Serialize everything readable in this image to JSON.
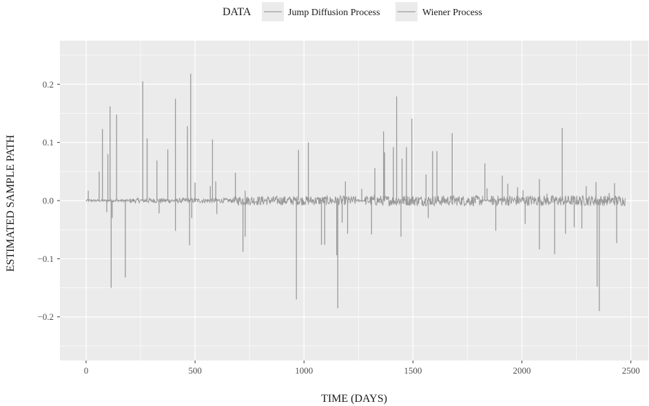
{
  "chart_data": {
    "type": "line",
    "title": "",
    "xlabel": "TIME (DAYS)",
    "ylabel": "ESTIMATED SAMPLE PATH",
    "xlim": [
      -120,
      2580
    ],
    "ylim": [
      -0.275,
      0.275
    ],
    "x_ticks": [
      0,
      500,
      1000,
      1500,
      2000,
      2500
    ],
    "x_tick_labels": [
      "0",
      "500",
      "1000",
      "1500",
      "2000",
      "2500"
    ],
    "y_ticks": [
      -0.2,
      -0.1,
      0.0,
      0.1,
      0.2
    ],
    "y_tick_labels": [
      "−0.2",
      "−0.1",
      "0.0",
      "0.1",
      "0.2"
    ],
    "grid": true,
    "legend": {
      "title": "DATA",
      "placement": "top",
      "entries": [
        "Jump Diffusion Process",
        "Wiener Process"
      ]
    },
    "colors": {
      "panel": "#ebebeb",
      "grid": "#ffffff",
      "line": "#999999"
    },
    "series": [
      {
        "name": "Jump Diffusion Process",
        "jumps": [
          [
            10,
            0.017
          ],
          [
            60,
            0.05
          ],
          [
            75,
            0.123
          ],
          [
            95,
            -0.02
          ],
          [
            100,
            0.08
          ],
          [
            110,
            0.162
          ],
          [
            115,
            -0.15
          ],
          [
            120,
            -0.03
          ],
          [
            140,
            0.148
          ],
          [
            180,
            -0.132
          ],
          [
            260,
            0.205
          ],
          [
            280,
            0.107
          ],
          [
            325,
            0.069
          ],
          [
            335,
            -0.022
          ],
          [
            375,
            0.088
          ],
          [
            410,
            0.175
          ],
          [
            410,
            -0.052
          ],
          [
            465,
            0.128
          ],
          [
            475,
            -0.077
          ],
          [
            480,
            0.218
          ],
          [
            485,
            -0.03
          ],
          [
            500,
            0.031
          ],
          [
            570,
            0.025
          ],
          [
            580,
            0.105
          ],
          [
            595,
            0.033
          ],
          [
            600,
            -0.023
          ],
          [
            685,
            0.048
          ],
          [
            720,
            -0.088
          ],
          [
            730,
            0.017
          ],
          [
            730,
            -0.062
          ],
          [
            965,
            -0.17
          ],
          [
            975,
            0.087
          ],
          [
            1020,
            0.1
          ],
          [
            1080,
            -0.076
          ],
          [
            1095,
            -0.076
          ],
          [
            1150,
            -0.094
          ],
          [
            1155,
            -0.185
          ],
          [
            1175,
            -0.038
          ],
          [
            1190,
            0.033
          ],
          [
            1200,
            -0.057
          ],
          [
            1265,
            0.02
          ],
          [
            1310,
            -0.058
          ],
          [
            1325,
            0.056
          ],
          [
            1365,
            0.119
          ],
          [
            1370,
            0.083
          ],
          [
            1410,
            0.092
          ],
          [
            1425,
            0.179
          ],
          [
            1445,
            -0.062
          ],
          [
            1450,
            0.072
          ],
          [
            1470,
            0.092
          ],
          [
            1495,
            0.141
          ],
          [
            1560,
            0.045
          ],
          [
            1570,
            -0.03
          ],
          [
            1590,
            0.085
          ],
          [
            1610,
            0.085
          ],
          [
            1680,
            0.116
          ],
          [
            1830,
            0.064
          ],
          [
            1840,
            0.021
          ],
          [
            1880,
            -0.052
          ],
          [
            1910,
            0.043
          ],
          [
            1935,
            0.029
          ],
          [
            1980,
            0.023
          ],
          [
            2005,
            0.018
          ],
          [
            2015,
            -0.04
          ],
          [
            2080,
            -0.084
          ],
          [
            2080,
            0.037
          ],
          [
            2115,
            0.012
          ],
          [
            2150,
            -0.092
          ],
          [
            2185,
            0.125
          ],
          [
            2200,
            -0.057
          ],
          [
            2240,
            -0.046
          ],
          [
            2275,
            -0.048
          ],
          [
            2295,
            0.025
          ],
          [
            2340,
            0.032
          ],
          [
            2345,
            -0.148
          ],
          [
            2355,
            -0.19
          ],
          [
            2400,
            0.013
          ],
          [
            2425,
            0.03
          ],
          [
            2435,
            -0.073
          ]
        ]
      },
      {
        "name": "Wiener Process",
        "noise_bands": [
          [
            0,
            200,
            0.002
          ],
          [
            200,
            680,
            0.004
          ],
          [
            680,
            1240,
            0.008
          ],
          [
            1240,
            1280,
            0.002
          ],
          [
            1280,
            1820,
            0.009
          ],
          [
            1820,
            1860,
            0.002
          ],
          [
            1860,
            2475,
            0.009
          ]
        ]
      }
    ]
  }
}
